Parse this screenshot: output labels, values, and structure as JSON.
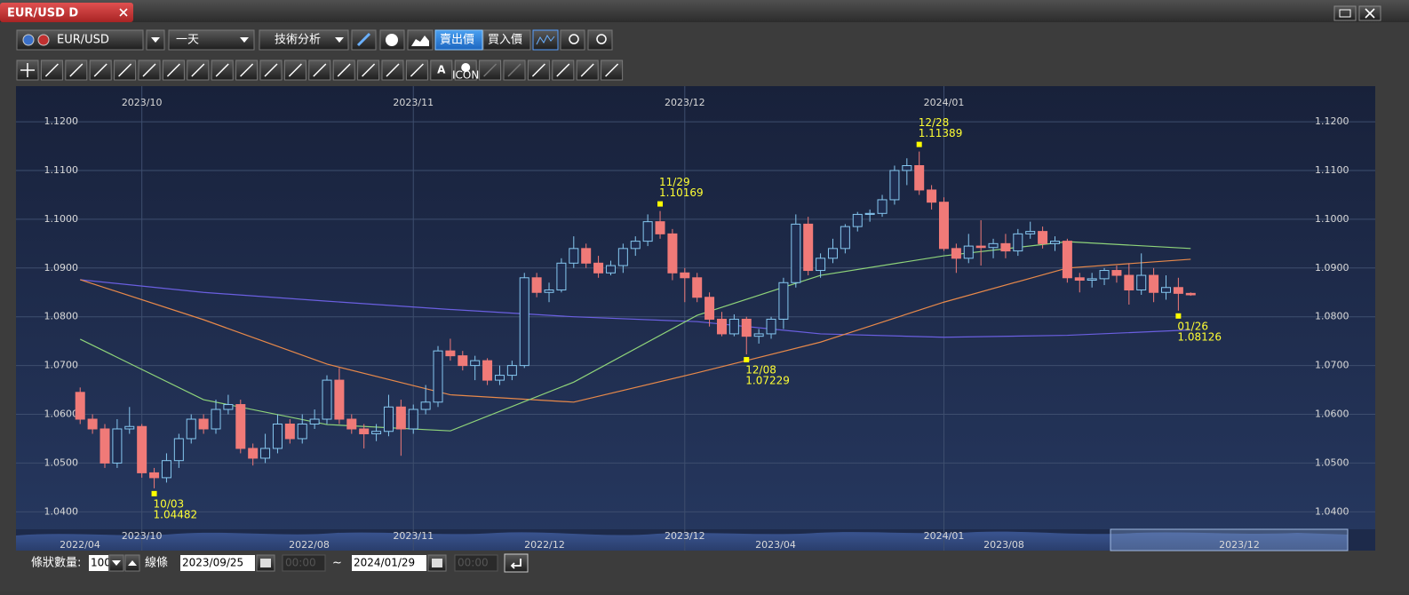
{
  "window": {
    "tab": "EUR/USD D"
  },
  "toolbar": {
    "symbol": "EUR/USD",
    "period": "一天",
    "analysis": "技術分析",
    "bid": "賣出價",
    "ask": "買入價",
    "text_tool": "A",
    "icon_tool": "ICON"
  },
  "footer": {
    "count_label": "條狀數量:",
    "count": "100",
    "line_label": "線條",
    "from_date": "2023/09/25",
    "from_time": "00:00",
    "tilde": "~",
    "to_date": "2024/01/29",
    "to_time": "00:00"
  },
  "navigator": {
    "labels": [
      "2022/04",
      "2022/08",
      "2022/12",
      "2023/04",
      "2023/08",
      "2023/12"
    ]
  },
  "chart_data": {
    "type": "candlestick",
    "up_color": "#86c8f0",
    "down_color": "#f07a78",
    "xlim": [
      -5.2,
      99.7
    ],
    "xticks": [
      {
        "value": 5,
        "label": "2023/10"
      },
      {
        "value": 27,
        "label": "2023/11"
      },
      {
        "value": 49,
        "label": "2023/12"
      },
      {
        "value": 70,
        "label": "2024/01"
      }
    ],
    "ylim": [
      1.0366,
      1.1273
    ],
    "yticks": [
      {
        "value": 1.04,
        "label": "1.0400"
      },
      {
        "value": 1.05,
        "label": "1.0500"
      },
      {
        "value": 1.06,
        "label": "1.0600"
      },
      {
        "value": 1.07,
        "label": "1.0700"
      },
      {
        "value": 1.08,
        "label": "1.0800"
      },
      {
        "value": 1.09,
        "label": "1.0900"
      },
      {
        "value": 1.1,
        "label": "1.1000"
      },
      {
        "value": 1.11,
        "label": "1.1100"
      },
      {
        "value": 1.12,
        "label": "1.1200"
      }
    ],
    "grid": true,
    "open": [
      1.0645,
      1.059,
      1.057,
      1.05,
      1.057,
      1.0575,
      1.048,
      1.047,
      1.0505,
      1.055,
      1.059,
      1.057,
      1.061,
      1.062,
      1.053,
      1.051,
      1.053,
      1.058,
      1.055,
      1.058,
      1.059,
      1.067,
      1.059,
      1.057,
      1.056,
      1.0565,
      1.0615,
      1.057,
      1.061,
      1.0625,
      1.073,
      1.072,
      1.07,
      1.071,
      1.067,
      1.068,
      1.07,
      1.088,
      1.085,
      1.0855,
      1.091,
      1.094,
      1.091,
      1.089,
      1.0905,
      1.094,
      1.0955,
      1.0995,
      1.097,
      1.089,
      1.088,
      1.084,
      1.0795,
      1.0765,
      1.0795,
      1.076,
      1.0765,
      1.0795,
      1.087,
      1.099,
      1.0895,
      1.092,
      1.094,
      1.0985,
      1.101,
      1.1012,
      1.104,
      1.11,
      1.111,
      1.106,
      1.1035,
      1.094,
      1.092,
      1.0945,
      1.0942,
      1.095,
      1.0935,
      1.097,
      1.0975,
      1.095,
      1.0955,
      1.088,
      1.0875,
      1.0878,
      1.0895,
      1.0885,
      1.0855,
      1.0885,
      1.085,
      1.086,
      1.0848
    ],
    "high": [
      1.0655,
      1.06,
      1.058,
      1.059,
      1.0615,
      1.058,
      1.049,
      1.052,
      1.056,
      1.06,
      1.06,
      1.063,
      1.064,
      1.063,
      1.054,
      1.056,
      1.06,
      1.059,
      1.06,
      1.061,
      1.068,
      1.0695,
      1.06,
      1.058,
      1.058,
      1.064,
      1.063,
      1.062,
      1.066,
      1.074,
      1.0755,
      1.073,
      1.072,
      1.0715,
      1.07,
      1.071,
      1.089,
      1.089,
      1.087,
      1.092,
      1.0965,
      1.095,
      1.0925,
      1.0915,
      1.095,
      1.0965,
      1.101,
      1.10169,
      1.098,
      1.09,
      1.089,
      1.085,
      1.081,
      1.0805,
      1.08,
      1.0775,
      1.08,
      1.088,
      1.101,
      1.1005,
      1.093,
      1.096,
      1.099,
      1.1015,
      1.102,
      1.105,
      1.111,
      1.1125,
      1.11389,
      1.107,
      1.1045,
      1.095,
      1.097,
      1.0998,
      1.096,
      1.097,
      1.098,
      1.0995,
      1.0985,
      1.0965,
      1.096,
      1.089,
      1.089,
      1.09,
      1.0905,
      1.091,
      1.093,
      1.09,
      1.0885,
      1.088,
      1.085
    ],
    "low": [
      1.058,
      1.056,
      1.049,
      1.049,
      1.056,
      1.047,
      1.04482,
      1.046,
      1.049,
      1.054,
      1.056,
      1.056,
      1.06,
      1.052,
      1.0495,
      1.05,
      1.052,
      1.054,
      1.054,
      1.057,
      1.058,
      1.058,
      1.056,
      1.053,
      1.0545,
      1.0555,
      1.0515,
      1.056,
      1.06,
      1.0615,
      1.071,
      1.069,
      1.067,
      1.066,
      1.066,
      1.067,
      1.0695,
      1.084,
      1.083,
      1.085,
      1.09,
      1.09,
      1.088,
      1.0885,
      1.089,
      1.0925,
      1.0945,
      1.096,
      1.0875,
      1.083,
      1.083,
      1.078,
      1.076,
      1.076,
      1.07229,
      1.0745,
      1.0755,
      1.0775,
      1.086,
      1.0885,
      1.088,
      1.091,
      1.093,
      1.0975,
      1.0995,
      1.1005,
      1.103,
      1.107,
      1.105,
      1.102,
      1.0935,
      1.089,
      1.091,
      1.0905,
      1.092,
      1.092,
      1.0925,
      1.096,
      1.094,
      1.0935,
      1.087,
      1.085,
      1.086,
      1.0865,
      1.087,
      1.0825,
      1.0845,
      1.083,
      1.0835,
      1.08126,
      1.0843
    ],
    "close": [
      1.059,
      1.057,
      1.05,
      1.057,
      1.0575,
      1.048,
      1.047,
      1.0505,
      1.055,
      1.059,
      1.057,
      1.061,
      1.062,
      1.053,
      1.051,
      1.053,
      1.058,
      1.055,
      1.058,
      1.059,
      1.067,
      1.059,
      1.057,
      1.056,
      1.0565,
      1.0615,
      1.057,
      1.061,
      1.0625,
      1.073,
      1.072,
      1.07,
      1.071,
      1.067,
      1.068,
      1.07,
      1.088,
      1.085,
      1.0855,
      1.091,
      1.094,
      1.091,
      1.089,
      1.0905,
      1.094,
      1.0955,
      1.0995,
      1.097,
      1.089,
      1.088,
      1.084,
      1.0795,
      1.0765,
      1.0795,
      1.076,
      1.0765,
      1.0795,
      1.087,
      1.099,
      1.0895,
      1.092,
      1.094,
      1.0985,
      1.101,
      1.1012,
      1.104,
      1.11,
      1.111,
      1.106,
      1.1035,
      1.094,
      1.092,
      1.0945,
      1.0942,
      1.095,
      1.0935,
      1.097,
      1.0975,
      1.095,
      1.0955,
      1.088,
      1.0875,
      1.0878,
      1.0895,
      1.0885,
      1.0855,
      1.0885,
      1.085,
      1.086,
      1.0848,
      1.0845
    ],
    "series": [
      {
        "color": "#6a5fe0",
        "x": [
          0,
          10,
          20,
          30,
          40,
          50,
          60,
          70,
          80,
          90
        ],
        "values": [
          1.0876,
          1.085,
          1.0832,
          1.0815,
          1.08,
          1.079,
          1.0765,
          1.0758,
          1.0762,
          1.0773
        ]
      },
      {
        "color": "#e8894a",
        "x": [
          0,
          10,
          20,
          30,
          40,
          50,
          60,
          70,
          80,
          90
        ],
        "values": [
          1.0876,
          1.0794,
          1.0703,
          1.064,
          1.0625,
          1.0685,
          1.0748,
          1.083,
          1.09,
          1.0918
        ]
      },
      {
        "color": "#8fd47a",
        "x": [
          0,
          10,
          20,
          30,
          40,
          50,
          60,
          70,
          80,
          90
        ],
        "values": [
          1.0754,
          1.063,
          1.0579,
          1.0566,
          1.0666,
          1.0803,
          1.0885,
          1.0925,
          1.0954,
          1.094
        ]
      }
    ],
    "annotations": [
      {
        "x": 6,
        "date": "10/03",
        "value": 1.04482
      },
      {
        "x": 47,
        "date": "11/29",
        "value": 1.10169
      },
      {
        "x": 54,
        "date": "12/08",
        "value": 1.07229
      },
      {
        "x": 68,
        "date": "12/28",
        "value": 1.11389
      },
      {
        "x": 89,
        "date": "01/26",
        "value": 1.08126
      }
    ]
  }
}
